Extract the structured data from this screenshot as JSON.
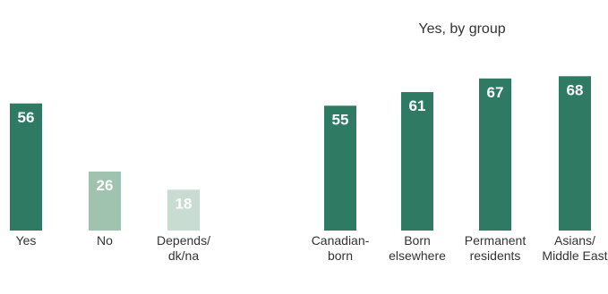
{
  "chart_data": [
    {
      "type": "bar",
      "title": "",
      "categories": [
        [
          "Yes"
        ],
        [
          "No"
        ],
        [
          "Depends/",
          "dk/na"
        ]
      ],
      "values": [
        56,
        26,
        18
      ],
      "colors": [
        "#2e7a62",
        "#9fc3af",
        "#c9dcd1"
      ],
      "ylim": [
        0,
        70
      ],
      "grid": false
    },
    {
      "type": "bar",
      "title": "Yes, by group",
      "categories": [
        [
          "Canadian-",
          "born"
        ],
        [
          "Born",
          "elsewhere"
        ],
        [
          "Permanent",
          "residents"
        ],
        [
          "Asians/",
          "Middle East"
        ]
      ],
      "values": [
        55,
        61,
        67,
        68
      ],
      "colors": [
        "#2e7a62",
        "#2e7a62",
        "#2e7a62",
        "#2e7a62"
      ],
      "ylim": [
        0,
        70
      ],
      "grid": false
    }
  ]
}
